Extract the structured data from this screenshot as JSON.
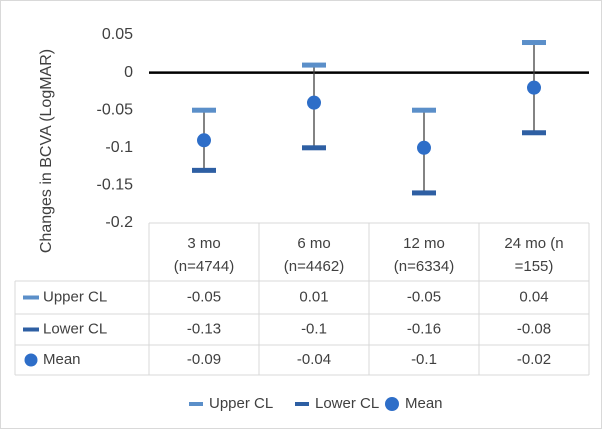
{
  "chart_data": {
    "type": "scatter",
    "title": "",
    "ylabel": "Changes in BCVA (LogMAR)",
    "xlabel": "",
    "ylim": [
      -0.2,
      0.05
    ],
    "yticks": [
      0.05,
      0,
      -0.05,
      -0.1,
      -0.15,
      -0.2
    ],
    "ytick_labels": [
      "0.05",
      "0",
      "-0.05",
      "-0.1",
      "-0.15",
      "-0.2"
    ],
    "categories": [
      [
        "3 mo",
        "(n=4744)"
      ],
      [
        "6 mo",
        "(n=4462)"
      ],
      [
        "12 mo",
        "(n=6334)"
      ],
      [
        "24 mo (n",
        "=155)"
      ]
    ],
    "series": [
      {
        "name": "Upper CL",
        "values": [
          -0.05,
          0.01,
          -0.05,
          0.04
        ],
        "labels": [
          "-0.05",
          "0.01",
          "-0.05",
          "0.04"
        ],
        "color": "#5b8fc9",
        "marker": "dash"
      },
      {
        "name": "Lower CL",
        "values": [
          -0.13,
          -0.1,
          -0.16,
          -0.08
        ],
        "labels": [
          "-0.13",
          "-0.1",
          "-0.16",
          "-0.08"
        ],
        "color": "#2e5fa3",
        "marker": "dash"
      },
      {
        "name": "Mean",
        "values": [
          -0.09,
          -0.04,
          -0.1,
          -0.02
        ],
        "labels": [
          "-0.09",
          "-0.04",
          "-0.1",
          "-0.02"
        ],
        "color": "#2e6ec8",
        "marker": "circle"
      }
    ],
    "error_bar_color": "#404040",
    "zero_line_color": "#000000",
    "grid": false,
    "data_table": true,
    "legend_position": "bottom"
  }
}
